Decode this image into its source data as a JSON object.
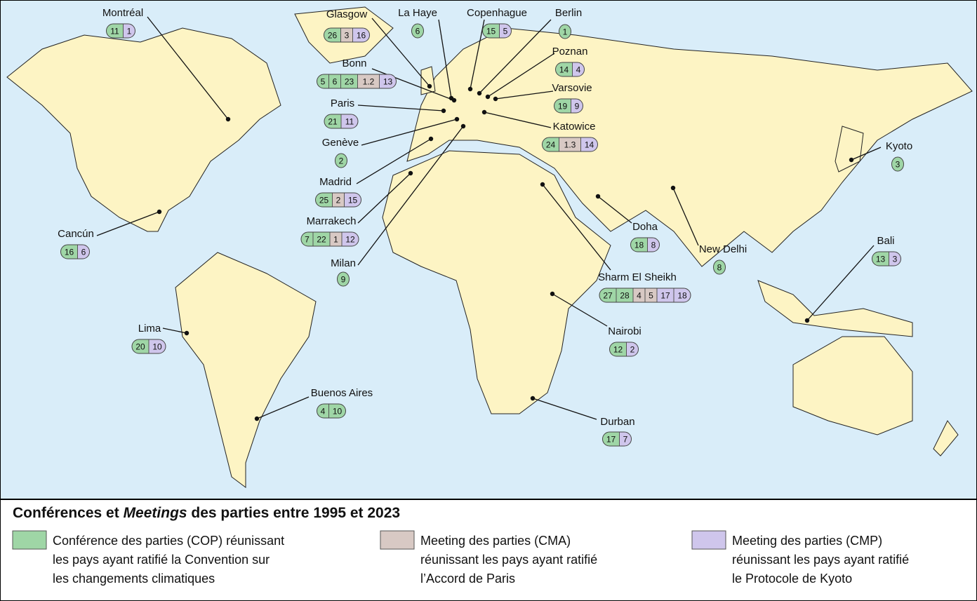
{
  "map": {
    "cities": [
      {
        "name": "Montréal",
        "cop": [
          11
        ],
        "cma": [],
        "cmp": [
          1
        ]
      },
      {
        "name": "Glasgow",
        "cop": [
          26
        ],
        "cma": [
          3
        ],
        "cmp": [
          16
        ]
      },
      {
        "name": "La Haye",
        "cop": [
          6
        ],
        "cma": [],
        "cmp": []
      },
      {
        "name": "Copenhague",
        "cop": [
          15
        ],
        "cma": [],
        "cmp": [
          5
        ]
      },
      {
        "name": "Berlin",
        "cop": [
          1
        ],
        "cma": [],
        "cmp": []
      },
      {
        "name": "Poznan",
        "cop": [
          14
        ],
        "cma": [],
        "cmp": [
          4
        ]
      },
      {
        "name": "Bonn",
        "cop": [
          5,
          6,
          23
        ],
        "cma": [
          1.2
        ],
        "cmp": [
          13
        ]
      },
      {
        "name": "Varsovie",
        "cop": [
          19
        ],
        "cma": [],
        "cmp": [
          9
        ]
      },
      {
        "name": "Paris",
        "cop": [
          21
        ],
        "cma": [],
        "cmp": [
          11
        ]
      },
      {
        "name": "Katowice",
        "cop": [
          24
        ],
        "cma": [
          1.3
        ],
        "cmp": [
          14
        ]
      },
      {
        "name": "Genève",
        "cop": [
          2
        ],
        "cma": [],
        "cmp": []
      },
      {
        "name": "Madrid",
        "cop": [
          25
        ],
        "cma": [
          2
        ],
        "cmp": [
          15
        ]
      },
      {
        "name": "Marrakech",
        "cop": [
          7,
          22
        ],
        "cma": [
          1
        ],
        "cmp": [
          12
        ]
      },
      {
        "name": "Milan",
        "cop": [
          9
        ],
        "cma": [],
        "cmp": []
      },
      {
        "name": "Kyoto",
        "cop": [
          3
        ],
        "cma": [],
        "cmp": []
      },
      {
        "name": "Cancún",
        "cop": [
          16
        ],
        "cma": [],
        "cmp": [
          6
        ]
      },
      {
        "name": "Doha",
        "cop": [
          18
        ],
        "cma": [],
        "cmp": [
          8
        ]
      },
      {
        "name": "New Delhi",
        "cop": [
          8
        ],
        "cma": [],
        "cmp": []
      },
      {
        "name": "Bali",
        "cop": [
          13
        ],
        "cma": [],
        "cmp": [
          3
        ]
      },
      {
        "name": "Sharm El Sheikh",
        "cop": [
          27,
          28
        ],
        "cma": [
          4,
          5
        ],
        "cmp": [
          17,
          18
        ]
      },
      {
        "name": "Lima",
        "cop": [
          20
        ],
        "cma": [],
        "cmp": [
          10
        ]
      },
      {
        "name": "Nairobi",
        "cop": [
          12
        ],
        "cma": [],
        "cmp": [
          2
        ]
      },
      {
        "name": "Buenos Aires",
        "cop": [
          4,
          10
        ],
        "cma": [],
        "cmp": []
      },
      {
        "name": "Durban",
        "cop": [
          17
        ],
        "cma": [],
        "cmp": [
          7
        ]
      }
    ]
  },
  "legend": {
    "title": [
      "Conférences et ",
      "Meetings",
      " des parties entre 1995 et 2023"
    ],
    "items": [
      {
        "lines": [
          "Conférence des parties (COP) réunissant",
          "les pays ayant ratifié la Convention sur",
          "les changements climatiques"
        ]
      },
      {
        "lines": [
          "Meeting des parties (CMA)",
          "réunissant les pays ayant ratifié",
          "l’Accord de Paris"
        ]
      },
      {
        "lines": [
          "Meeting des parties (CMP)",
          "réunissant les pays ayant ratifié",
          "le Protocole de Kyoto"
        ]
      }
    ]
  }
}
